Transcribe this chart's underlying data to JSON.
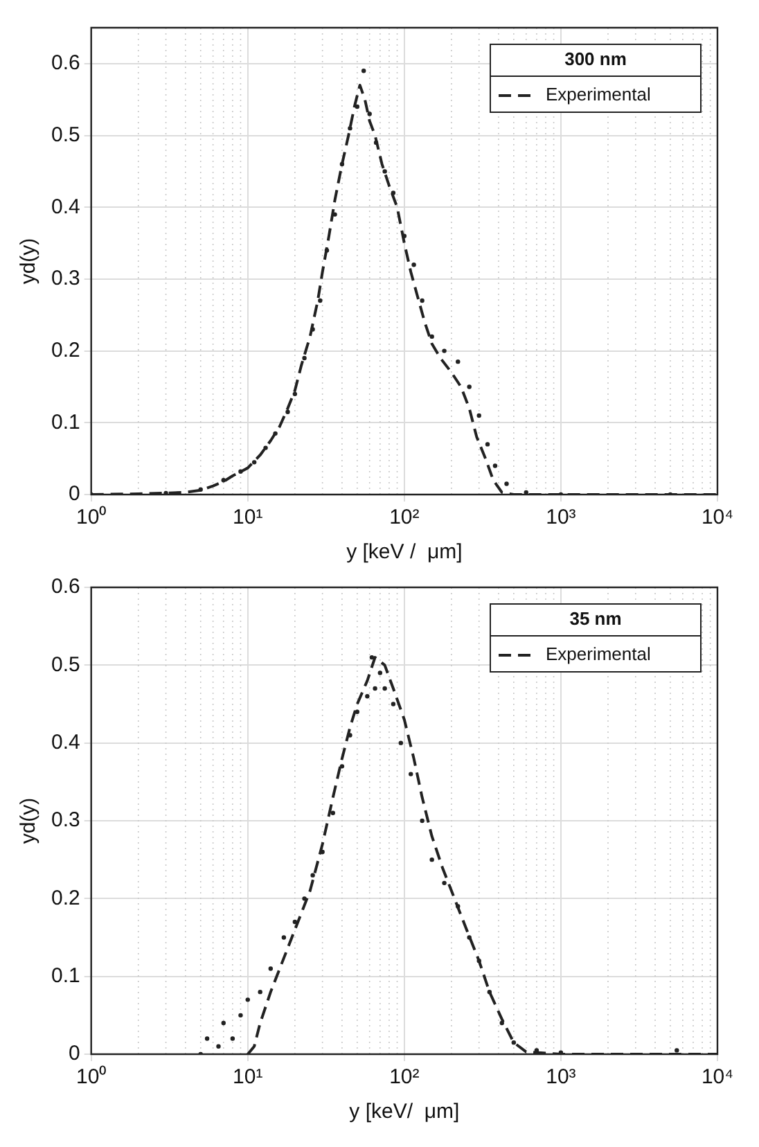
{
  "chart_data": [
    {
      "type": "line",
      "xlabel": "y [keV /  μm]",
      "ylabel": "yd(y)",
      "legend_title": "300 nm",
      "legend": "top right",
      "grid": true,
      "log": "x",
      "xlim": [
        1,
        10000
      ],
      "xticks": [
        {
          "value": 1,
          "label": "10⁰"
        },
        {
          "value": 10,
          "label": "10¹"
        },
        {
          "value": 100,
          "label": "10²"
        },
        {
          "value": 1000,
          "label": "10³"
        },
        {
          "value": 10000,
          "label": "10⁴"
        }
      ],
      "ylim": [
        0,
        0.65
      ],
      "yticks": [
        0,
        0.1,
        0.2,
        0.3,
        0.4,
        0.5,
        0.6
      ],
      "series": [
        {
          "type": "scatter",
          "marker": "circle",
          "color": "#222222",
          "x": [
            1,
            3,
            5,
            7,
            9,
            11,
            13,
            15,
            18,
            20,
            23,
            26,
            29,
            32,
            36,
            40,
            45,
            50,
            55,
            60,
            66,
            75,
            85,
            100,
            115,
            130,
            150,
            180,
            220,
            260,
            300,
            340,
            380,
            450,
            600,
            1000,
            5000
          ],
          "values": [
            0,
            0.002,
            0.007,
            0.02,
            0.032,
            0.045,
            0.065,
            0.085,
            0.115,
            0.14,
            0.19,
            0.23,
            0.27,
            0.34,
            0.39,
            0.46,
            0.51,
            0.54,
            0.59,
            0.53,
            0.49,
            0.45,
            0.42,
            0.36,
            0.32,
            0.27,
            0.22,
            0.2,
            0.185,
            0.15,
            0.11,
            0.07,
            0.04,
            0.015,
            0.003,
            0,
            0
          ]
        },
        {
          "type": "line",
          "name": "Experimental",
          "line_style": "dashed",
          "color": "#222222",
          "x": [
            1,
            2,
            4,
            5,
            6,
            7,
            8,
            10,
            12,
            14,
            16,
            18,
            20,
            22,
            25,
            28,
            30,
            33,
            36,
            40,
            44,
            48,
            52,
            56,
            60,
            65,
            72,
            80,
            90,
            100,
            110,
            120,
            135,
            150,
            170,
            200,
            230,
            260,
            290,
            330,
            370,
            420,
            500,
            1000,
            10000
          ],
          "values": [
            0,
            0.001,
            0.003,
            0.006,
            0.012,
            0.018,
            0.026,
            0.037,
            0.055,
            0.075,
            0.095,
            0.12,
            0.145,
            0.18,
            0.22,
            0.27,
            0.31,
            0.36,
            0.41,
            0.46,
            0.5,
            0.54,
            0.57,
            0.55,
            0.52,
            0.5,
            0.46,
            0.43,
            0.4,
            0.35,
            0.31,
            0.28,
            0.24,
            0.21,
            0.19,
            0.17,
            0.15,
            0.12,
            0.08,
            0.05,
            0.02,
            0.003,
            0,
            0,
            0
          ]
        }
      ]
    },
    {
      "type": "line",
      "xlabel": "y [keV/  μm]",
      "ylabel": "yd(y)",
      "legend_title": "35 nm",
      "legend": "top right",
      "grid": true,
      "log": "x",
      "xlim": [
        1,
        10000
      ],
      "xticks": [
        {
          "value": 1,
          "label": "10⁰"
        },
        {
          "value": 10,
          "label": "10¹"
        },
        {
          "value": 100,
          "label": "10²"
        },
        {
          "value": 1000,
          "label": "10³"
        },
        {
          "value": 10000,
          "label": "10⁴"
        }
      ],
      "ylim": [
        0,
        0.6
      ],
      "yticks": [
        0,
        0.1,
        0.2,
        0.3,
        0.4,
        0.5,
        0.6
      ],
      "series": [
        {
          "type": "scatter",
          "marker": "circle",
          "color": "#222222",
          "x": [
            5,
            5.5,
            6.5,
            7,
            8,
            9,
            10,
            12,
            14,
            17,
            20,
            23,
            26,
            30,
            35,
            40,
            45,
            50,
            58,
            62,
            65,
            70,
            75,
            85,
            95,
            110,
            130,
            150,
            180,
            220,
            260,
            300,
            350,
            420,
            500,
            700,
            1000,
            3000,
            5500
          ],
          "values": [
            0,
            0.02,
            0.01,
            0.04,
            0.02,
            0.05,
            0.07,
            0.08,
            0.11,
            0.15,
            0.17,
            0.2,
            0.23,
            0.26,
            0.31,
            0.37,
            0.41,
            0.44,
            0.46,
            0.51,
            0.47,
            0.49,
            0.47,
            0.45,
            0.4,
            0.36,
            0.3,
            0.25,
            0.22,
            0.19,
            0.15,
            0.12,
            0.08,
            0.04,
            0.015,
            0.005,
            0.002,
            null,
            0.005
          ]
        },
        {
          "type": "line",
          "name": "Experimental",
          "line_style": "dashed",
          "color": "#222222",
          "x": [
            10,
            11,
            12,
            14,
            16,
            20,
            25,
            30,
            35,
            40,
            45,
            50,
            58,
            65,
            75,
            85,
            100,
            115,
            130,
            150,
            175,
            200,
            250,
            300,
            350,
            420,
            500,
            600,
            1000,
            10000
          ],
          "values": [
            0,
            0.01,
            0.04,
            0.08,
            0.11,
            0.16,
            0.21,
            0.27,
            0.33,
            0.38,
            0.42,
            0.45,
            0.48,
            0.51,
            0.5,
            0.47,
            0.43,
            0.38,
            0.33,
            0.28,
            0.24,
            0.21,
            0.16,
            0.12,
            0.08,
            0.045,
            0.015,
            0.003,
            0,
            0
          ]
        }
      ]
    }
  ]
}
